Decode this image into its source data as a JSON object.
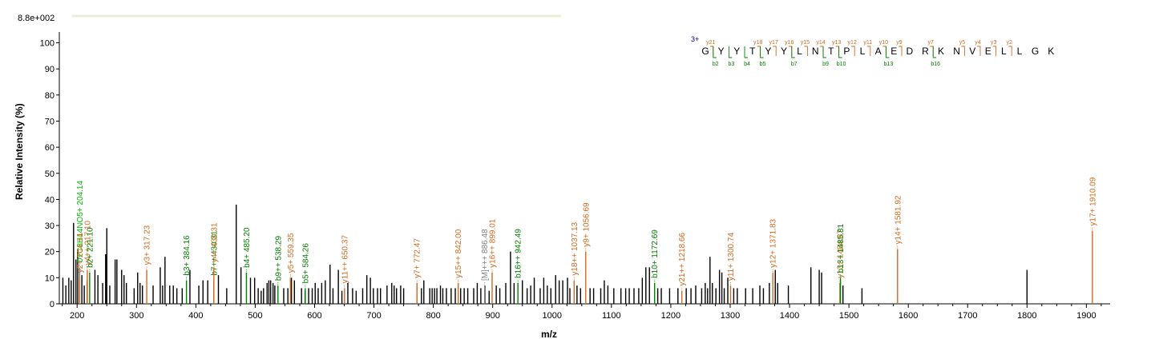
{
  "chart_data": {
    "type": "bar",
    "scale_label": "8.8e+002",
    "xlabel": "m/z",
    "ylabel": "Relative   Intensity (%)",
    "xlim": [
      170,
      1940
    ],
    "ylim": [
      0,
      102
    ],
    "xticks": [
      200,
      300,
      400,
      500,
      600,
      700,
      800,
      900,
      1000,
      1100,
      1200,
      1300,
      1400,
      1500,
      1600,
      1700,
      1800,
      1900
    ],
    "yticks": [
      0,
      10,
      20,
      30,
      40,
      50,
      60,
      70,
      80,
      90,
      100
    ],
    "colors": {
      "y_ion": "#d2691e",
      "b_ion": "#008000",
      "other": "#808080",
      "unassigned": "#000000",
      "green_label": "#00bb00"
    },
    "peaks": [
      {
        "mz": 176,
        "i": 10
      },
      {
        "mz": 181,
        "i": 7
      },
      {
        "mz": 186,
        "i": 10
      },
      {
        "mz": 190,
        "i": 9
      },
      {
        "mz": 194,
        "i": 31
      },
      {
        "mz": 198,
        "i": 17
      },
      {
        "mz": 201,
        "i": 21
      },
      {
        "mz": 208,
        "i": 11
      },
      {
        "mz": 212,
        "i": 7
      },
      {
        "mz": 217,
        "i": 9
      },
      {
        "mz": 230,
        "i": 13
      },
      {
        "mz": 235,
        "i": 11
      },
      {
        "mz": 243,
        "i": 8
      },
      {
        "mz": 248,
        "i": 19
      },
      {
        "mz": 250,
        "i": 29
      },
      {
        "mz": 255,
        "i": 7
      },
      {
        "mz": 264,
        "i": 17
      },
      {
        "mz": 267,
        "i": 17
      },
      {
        "mz": 275,
        "i": 13
      },
      {
        "mz": 279,
        "i": 11
      },
      {
        "mz": 283,
        "i": 8
      },
      {
        "mz": 296,
        "i": 6
      },
      {
        "mz": 302,
        "i": 12
      },
      {
        "mz": 306,
        "i": 8
      },
      {
        "mz": 310,
        "i": 7
      },
      {
        "mz": 328,
        "i": 7
      },
      {
        "mz": 340,
        "i": 14
      },
      {
        "mz": 344,
        "i": 7
      },
      {
        "mz": 348,
        "i": 18
      },
      {
        "mz": 356,
        "i": 7
      },
      {
        "mz": 362,
        "i": 7
      },
      {
        "mz": 368,
        "i": 6
      },
      {
        "mz": 377,
        "i": 6
      },
      {
        "mz": 390,
        "i": 13
      },
      {
        "mz": 405,
        "i": 7
      },
      {
        "mz": 412,
        "i": 9
      },
      {
        "mz": 420,
        "i": 9
      },
      {
        "mz": 438,
        "i": 11
      },
      {
        "mz": 452,
        "i": 6
      },
      {
        "mz": 468,
        "i": 38
      },
      {
        "mz": 476,
        "i": 14
      },
      {
        "mz": 492,
        "i": 10
      },
      {
        "mz": 499,
        "i": 10
      },
      {
        "mz": 505,
        "i": 6
      },
      {
        "mz": 510,
        "i": 5
      },
      {
        "mz": 514,
        "i": 6
      },
      {
        "mz": 520,
        "i": 8
      },
      {
        "mz": 523,
        "i": 9
      },
      {
        "mz": 526,
        "i": 9
      },
      {
        "mz": 530,
        "i": 8
      },
      {
        "mz": 533,
        "i": 7
      },
      {
        "mz": 548,
        "i": 6
      },
      {
        "mz": 555,
        "i": 6
      },
      {
        "mz": 561,
        "i": 10
      },
      {
        "mz": 566,
        "i": 9
      },
      {
        "mz": 578,
        "i": 6
      },
      {
        "mz": 584,
        "i": 5
      },
      {
        "mz": 590,
        "i": 6
      },
      {
        "mz": 596,
        "i": 6
      },
      {
        "mz": 601,
        "i": 8
      },
      {
        "mz": 606,
        "i": 6
      },
      {
        "mz": 612,
        "i": 8
      },
      {
        "mz": 618,
        "i": 9
      },
      {
        "mz": 626,
        "i": 15
      },
      {
        "mz": 631,
        "i": 6
      },
      {
        "mz": 640,
        "i": 13
      },
      {
        "mz": 646,
        "i": 5
      },
      {
        "mz": 656,
        "i": 8
      },
      {
        "mz": 664,
        "i": 6
      },
      {
        "mz": 670,
        "i": 5
      },
      {
        "mz": 681,
        "i": 6
      },
      {
        "mz": 688,
        "i": 11
      },
      {
        "mz": 694,
        "i": 10
      },
      {
        "mz": 699,
        "i": 6
      },
      {
        "mz": 706,
        "i": 6
      },
      {
        "mz": 711,
        "i": 6
      },
      {
        "mz": 722,
        "i": 7
      },
      {
        "mz": 730,
        "i": 8
      },
      {
        "mz": 734,
        "i": 7
      },
      {
        "mz": 738,
        "i": 6
      },
      {
        "mz": 745,
        "i": 7
      },
      {
        "mz": 750,
        "i": 6
      },
      {
        "mz": 780,
        "i": 6
      },
      {
        "mz": 784,
        "i": 9
      },
      {
        "mz": 794,
        "i": 6
      },
      {
        "mz": 798,
        "i": 6
      },
      {
        "mz": 802,
        "i": 6
      },
      {
        "mz": 806,
        "i": 6
      },
      {
        "mz": 812,
        "i": 7
      },
      {
        "mz": 816,
        "i": 6
      },
      {
        "mz": 822,
        "i": 6
      },
      {
        "mz": 830,
        "i": 6
      },
      {
        "mz": 837,
        "i": 6
      },
      {
        "mz": 846,
        "i": 6
      },
      {
        "mz": 852,
        "i": 6
      },
      {
        "mz": 858,
        "i": 6
      },
      {
        "mz": 868,
        "i": 6
      },
      {
        "mz": 874,
        "i": 8
      },
      {
        "mz": 880,
        "i": 6
      },
      {
        "mz": 887,
        "i": 7
      },
      {
        "mz": 894,
        "i": 5
      },
      {
        "mz": 906,
        "i": 7
      },
      {
        "mz": 912,
        "i": 6
      },
      {
        "mz": 922,
        "i": 8
      },
      {
        "mz": 930,
        "i": 20
      },
      {
        "mz": 936,
        "i": 8
      },
      {
        "mz": 950,
        "i": 9
      },
      {
        "mz": 958,
        "i": 6
      },
      {
        "mz": 964,
        "i": 7
      },
      {
        "mz": 970,
        "i": 10
      },
      {
        "mz": 980,
        "i": 6
      },
      {
        "mz": 986,
        "i": 10
      },
      {
        "mz": 992,
        "i": 7
      },
      {
        "mz": 998,
        "i": 6
      },
      {
        "mz": 1006,
        "i": 11
      },
      {
        "mz": 1012,
        "i": 9
      },
      {
        "mz": 1018,
        "i": 9
      },
      {
        "mz": 1026,
        "i": 10
      },
      {
        "mz": 1030,
        "i": 6
      },
      {
        "mz": 1042,
        "i": 7
      },
      {
        "mz": 1048,
        "i": 6
      },
      {
        "mz": 1064,
        "i": 6
      },
      {
        "mz": 1070,
        "i": 6
      },
      {
        "mz": 1082,
        "i": 6
      },
      {
        "mz": 1088,
        "i": 9
      },
      {
        "mz": 1094,
        "i": 7
      },
      {
        "mz": 1104,
        "i": 6
      },
      {
        "mz": 1116,
        "i": 6
      },
      {
        "mz": 1124,
        "i": 6
      },
      {
        "mz": 1130,
        "i": 6
      },
      {
        "mz": 1138,
        "i": 6
      },
      {
        "mz": 1146,
        "i": 6
      },
      {
        "mz": 1152,
        "i": 10
      },
      {
        "mz": 1158,
        "i": 14
      },
      {
        "mz": 1164,
        "i": 14
      },
      {
        "mz": 1178,
        "i": 6
      },
      {
        "mz": 1184,
        "i": 6
      },
      {
        "mz": 1198,
        "i": 6
      },
      {
        "mz": 1212,
        "i": 6
      },
      {
        "mz": 1226,
        "i": 6
      },
      {
        "mz": 1234,
        "i": 6
      },
      {
        "mz": 1242,
        "i": 7
      },
      {
        "mz": 1252,
        "i": 6
      },
      {
        "mz": 1258,
        "i": 8
      },
      {
        "mz": 1262,
        "i": 6
      },
      {
        "mz": 1266,
        "i": 18
      },
      {
        "mz": 1270,
        "i": 8
      },
      {
        "mz": 1276,
        "i": 6
      },
      {
        "mz": 1282,
        "i": 13
      },
      {
        "mz": 1286,
        "i": 12
      },
      {
        "mz": 1290,
        "i": 6
      },
      {
        "mz": 1296,
        "i": 10
      },
      {
        "mz": 1306,
        "i": 6
      },
      {
        "mz": 1312,
        "i": 6
      },
      {
        "mz": 1326,
        "i": 6
      },
      {
        "mz": 1338,
        "i": 6
      },
      {
        "mz": 1350,
        "i": 7
      },
      {
        "mz": 1356,
        "i": 6
      },
      {
        "mz": 1366,
        "i": 8
      },
      {
        "mz": 1376,
        "i": 13
      },
      {
        "mz": 1380,
        "i": 8
      },
      {
        "mz": 1398,
        "i": 7
      },
      {
        "mz": 1436,
        "i": 14
      },
      {
        "mz": 1450,
        "i": 13
      },
      {
        "mz": 1454,
        "i": 12
      },
      {
        "mz": 1490,
        "i": 7
      },
      {
        "mz": 1522,
        "i": 6
      },
      {
        "mz": 1800,
        "i": 13
      }
    ],
    "labeled_peaks": [
      {
        "mz": 204.14,
        "i": 14,
        "ion": "other",
        "label": "0+C8H14NO5+ 204.14",
        "label_color": "green_label"
      },
      {
        "mz": 204.14,
        "i": 10,
        "ion": "y",
        "label": "y2+ 204.14"
      },
      {
        "mz": 217.1,
        "i": 13,
        "ion": "y",
        "label": "y4++ 217.10"
      },
      {
        "mz": 221.1,
        "i": 12,
        "ion": "b",
        "label": "b2+ 221.10"
      },
      {
        "mz": 317.23,
        "i": 13,
        "ion": "y",
        "label": "y3+ 317.23"
      },
      {
        "mz": 384.16,
        "i": 9,
        "ion": "b",
        "label": "b3+ 384.16"
      },
      {
        "mz": 430.31,
        "i": 9,
        "ion": "b",
        "label": "b7++ 430.31"
      },
      {
        "mz": 430.31,
        "i": 14,
        "ion": "y",
        "label": "y4+ 430.31"
      },
      {
        "mz": 485.2,
        "i": 12,
        "ion": "b",
        "label": "b4+ 485.20"
      },
      {
        "mz": 538.29,
        "i": 7,
        "ion": "b",
        "label": "b9++ 538.29"
      },
      {
        "mz": 559.35,
        "i": 10,
        "ion": "y",
        "label": "y5+ 559.35"
      },
      {
        "mz": 584.26,
        "i": 6,
        "ion": "b",
        "label": "b5+ 584.26"
      },
      {
        "mz": 650.37,
        "i": 6,
        "ion": "y",
        "label": "y11++ 650.37"
      },
      {
        "mz": 772.47,
        "i": 8,
        "ion": "y",
        "label": "y7+ 772.47"
      },
      {
        "mz": 842.0,
        "i": 8,
        "ion": "y",
        "label": "y15++ 842.00"
      },
      {
        "mz": 886.48,
        "i": 7,
        "ion": "other",
        "label": "[M]+++ 886.48"
      },
      {
        "mz": 899.01,
        "i": 12,
        "ion": "y",
        "label": "y16++ 899.01"
      },
      {
        "mz": 942.49,
        "i": 8,
        "ion": "b",
        "label": "b16++ 942.49"
      },
      {
        "mz": 1037.13,
        "i": 9,
        "ion": "y",
        "label": "y18++ 1037.13"
      },
      {
        "mz": 1056.69,
        "i": 20,
        "ion": "y",
        "label": "y9+ 1056.69"
      },
      {
        "mz": 1172.69,
        "i": 8,
        "ion": "b",
        "label": "b10+ 1172.69"
      },
      {
        "mz": 1218.66,
        "i": 5,
        "ion": "y",
        "label": "y21++ 1218.66"
      },
      {
        "mz": 1300.74,
        "i": 7,
        "ion": "y",
        "label": "y11+ 1300.74"
      },
      {
        "mz": 1371.83,
        "i": 12,
        "ion": "y",
        "label": "y12+ 1371.83"
      },
      {
        "mz": 1484.87,
        "i": 8,
        "ion": "y",
        "label": "y13+ 1484.87"
      },
      {
        "mz": 1485.81,
        "i": 10,
        "ion": "b",
        "label": "b13+ 1485.81"
      },
      {
        "mz": 1581.92,
        "i": 21,
        "ion": "y",
        "label": "y14+ 1581.92"
      },
      {
        "mz": 1910.09,
        "i": 28,
        "ion": "y",
        "label": "y17+ 1910.09"
      }
    ]
  },
  "sequence": {
    "charge": "3+",
    "residues": [
      "G",
      "Y",
      "Y",
      "T",
      "Y",
      "Y",
      "L",
      "N",
      "T",
      "P",
      "L",
      "A",
      "E",
      "D",
      "R",
      "K",
      "N",
      "V",
      "E",
      "L",
      "L",
      "G",
      "K"
    ],
    "y_ions": [
      {
        "after": 1,
        "label": "y21"
      },
      {
        "after": 4,
        "label": "y18"
      },
      {
        "after": 5,
        "label": "y17"
      },
      {
        "after": 6,
        "label": "y16"
      },
      {
        "after": 7,
        "label": "y15"
      },
      {
        "after": 8,
        "label": "y14"
      },
      {
        "after": 9,
        "label": "y13"
      },
      {
        "after": 10,
        "label": "y12"
      },
      {
        "after": 11,
        "label": "y11"
      },
      {
        "after": 12,
        "label": "y10"
      },
      {
        "after": 13,
        "label": "y9"
      },
      {
        "after": 15,
        "label": "y7"
      },
      {
        "after": 17,
        "label": "y5"
      },
      {
        "after": 18,
        "label": "y4"
      },
      {
        "after": 19,
        "label": "y3"
      },
      {
        "after": 20,
        "label": "y2"
      }
    ],
    "b_ions": [
      {
        "after": 1,
        "label": "b2"
      },
      {
        "after": 2,
        "label": "b3"
      },
      {
        "after": 3,
        "label": "b4"
      },
      {
        "after": 4,
        "label": "b5"
      },
      {
        "after": 6,
        "label": "b7"
      },
      {
        "after": 8,
        "label": "b9"
      },
      {
        "after": 9,
        "label": "b10"
      },
      {
        "after": 12,
        "label": "b13"
      },
      {
        "after": 15,
        "label": "b16"
      }
    ]
  }
}
